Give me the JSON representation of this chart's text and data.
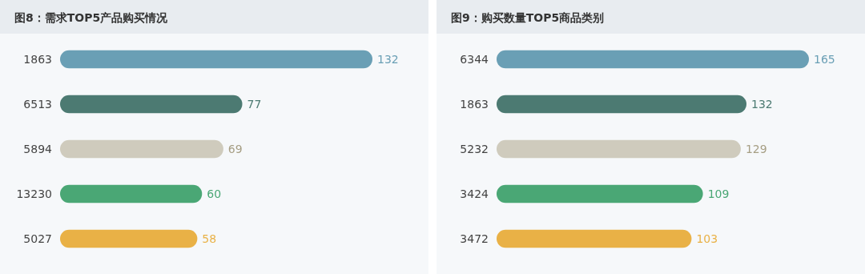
{
  "chart_data": [
    {
      "type": "bar",
      "title": "图8：需求TOP5产品购买情况",
      "orientation": "horizontal",
      "categories": [
        "1863",
        "6513",
        "5894",
        "13230",
        "5027"
      ],
      "values": [
        132,
        77,
        69,
        60,
        58
      ],
      "colors": [
        "#6a9fb5",
        "#4c7a72",
        "#cfcbbd",
        "#4aa775",
        "#e9b146"
      ],
      "data_labels": true
    },
    {
      "type": "bar",
      "title": "图9：购买数量TOP5商品类别",
      "orientation": "horizontal",
      "categories": [
        "6344",
        "1863",
        "5232",
        "3424",
        "3472"
      ],
      "values": [
        165,
        132,
        129,
        109,
        103
      ],
      "colors": [
        "#6a9fb5",
        "#4c7a72",
        "#cfcbbd",
        "#4aa775",
        "#e9b146"
      ],
      "data_labels": true
    }
  ]
}
